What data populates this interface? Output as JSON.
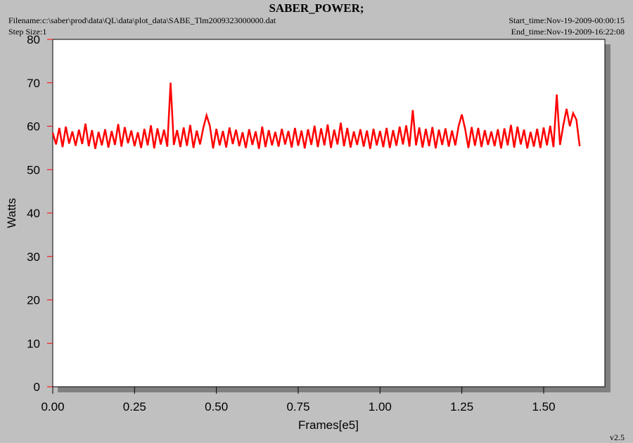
{
  "chart_data": {
    "type": "line",
    "title": "SABER_POWER;",
    "filename": "Filename:c:\\saber\\prod\\data\\QL\\data\\plot_data\\SABE_Tlm2009323000000.dat",
    "step_size": "Step Size:1",
    "start_time": "Start_time:Nov-19-2009-00:00:15",
    "end_time": "End_time:Nov-19-2009-16:22:08",
    "version": "v2.5",
    "xlabel": "Frames[e5]",
    "ylabel": "Watts",
    "xlim": [
      0,
      1.687
    ],
    "ylim": [
      0,
      80
    ],
    "xticks": [
      {
        "value": 0,
        "label": "0.00"
      },
      {
        "value": 0.25,
        "label": "0.25"
      },
      {
        "value": 0.5,
        "label": "0.50"
      },
      {
        "value": 0.75,
        "label": "0.75"
      },
      {
        "value": 1,
        "label": "1.00"
      },
      {
        "value": 1.25,
        "label": "1.25"
      },
      {
        "value": 1.5,
        "label": "1.50"
      }
    ],
    "yticks": [
      0,
      10,
      20,
      30,
      40,
      50,
      60,
      70,
      80
    ],
    "x": [
      0,
      0.01,
      0.02,
      0.03,
      0.04,
      0.05,
      0.06,
      0.07,
      0.08,
      0.09,
      0.1,
      0.11,
      0.12,
      0.13,
      0.14,
      0.15,
      0.16,
      0.17,
      0.18,
      0.19,
      0.2,
      0.21,
      0.22,
      0.23,
      0.24,
      0.25,
      0.26,
      0.27,
      0.28,
      0.29,
      0.3,
      0.31,
      0.32,
      0.33,
      0.34,
      0.35,
      0.36,
      0.37,
      0.38,
      0.39,
      0.4,
      0.41,
      0.42,
      0.43,
      0.44,
      0.45,
      0.46,
      0.47,
      0.48,
      0.49,
      0.5,
      0.51,
      0.52,
      0.53,
      0.54,
      0.55,
      0.56,
      0.57,
      0.58,
      0.59,
      0.6,
      0.61,
      0.62,
      0.63,
      0.64,
      0.65,
      0.66,
      0.67,
      0.68,
      0.69,
      0.7,
      0.71,
      0.72,
      0.73,
      0.74,
      0.75,
      0.76,
      0.77,
      0.78,
      0.79,
      0.8,
      0.81,
      0.82,
      0.83,
      0.84,
      0.85,
      0.86,
      0.87,
      0.88,
      0.89,
      0.9,
      0.91,
      0.92,
      0.93,
      0.94,
      0.95,
      0.96,
      0.97,
      0.98,
      0.99,
      1,
      1.01,
      1.02,
      1.03,
      1.04,
      1.05,
      1.06,
      1.07,
      1.08,
      1.09,
      1.1,
      1.11,
      1.12,
      1.13,
      1.14,
      1.15,
      1.16,
      1.17,
      1.18,
      1.19,
      1.2,
      1.21,
      1.22,
      1.23,
      1.24,
      1.25,
      1.26,
      1.27,
      1.28,
      1.29,
      1.3,
      1.31,
      1.32,
      1.33,
      1.34,
      1.35,
      1.36,
      1.37,
      1.38,
      1.39,
      1.4,
      1.41,
      1.42,
      1.43,
      1.44,
      1.45,
      1.46,
      1.47,
      1.48,
      1.49,
      1.5,
      1.51,
      1.52,
      1.53,
      1.54,
      1.55,
      1.56,
      1.57,
      1.58,
      1.59,
      1.6,
      1.61
    ],
    "series": [
      {
        "color": "#ff0000",
        "values": [
          58.5,
          55.8,
          59.6,
          55.2,
          59.9,
          56.0,
          58.8,
          55.5,
          59.2,
          55.9,
          60.6,
          55.4,
          59.1,
          54.8,
          58.7,
          55.6,
          59.3,
          55.1,
          58.9,
          55.7,
          60.5,
          55.3,
          59.8,
          56.1,
          59.0,
          55.4,
          58.6,
          55.0,
          59.4,
          55.6,
          60.2,
          54.9,
          59.5,
          55.8,
          59.2,
          55.3,
          70.0,
          55.7,
          59.1,
          55.2,
          59.7,
          55.5,
          60.3,
          55.0,
          59.0,
          55.8,
          59.6,
          62.5,
          60.1,
          54.9,
          59.4,
          55.6,
          58.9,
          55.1,
          59.7,
          55.9,
          59.2,
          55.4,
          58.6,
          55.0,
          59.3,
          55.7,
          58.8,
          54.8,
          59.9,
          55.2,
          59.1,
          55.6,
          58.7,
          55.3,
          59.4,
          55.8,
          58.9,
          55.1,
          59.6,
          55.5,
          59.0,
          54.9,
          59.3,
          55.7,
          60.1,
          55.2,
          59.5,
          55.6,
          60.4,
          55.0,
          59.2,
          55.8,
          60.8,
          55.4,
          59.6,
          55.1,
          58.8,
          55.7,
          59.3,
          55.3,
          59.0,
          54.8,
          59.4,
          55.6,
          58.9,
          55.2,
          59.6,
          55.0,
          59.1,
          55.5,
          59.9,
          55.8,
          60.2,
          55.3,
          63.7,
          55.6,
          59.7,
          55.1,
          59.4,
          55.4,
          59.8,
          54.9,
          59.2,
          55.7,
          59.5,
          55.3,
          59.0,
          55.6,
          60.0,
          62.7,
          59.4,
          55.0,
          59.8,
          55.5,
          59.6,
          55.2,
          59.1,
          55.7,
          58.8,
          55.4,
          59.3,
          54.9,
          59.5,
          55.6,
          60.3,
          55.1,
          59.9,
          55.8,
          59.2,
          54.9,
          58.7,
          55.3,
          59.4,
          55.0,
          59.7,
          55.6,
          60.1,
          55.2,
          67.3,
          55.7,
          60.2,
          64.0,
          60.0,
          63.0,
          61.5,
          55.4
        ]
      }
    ]
  }
}
